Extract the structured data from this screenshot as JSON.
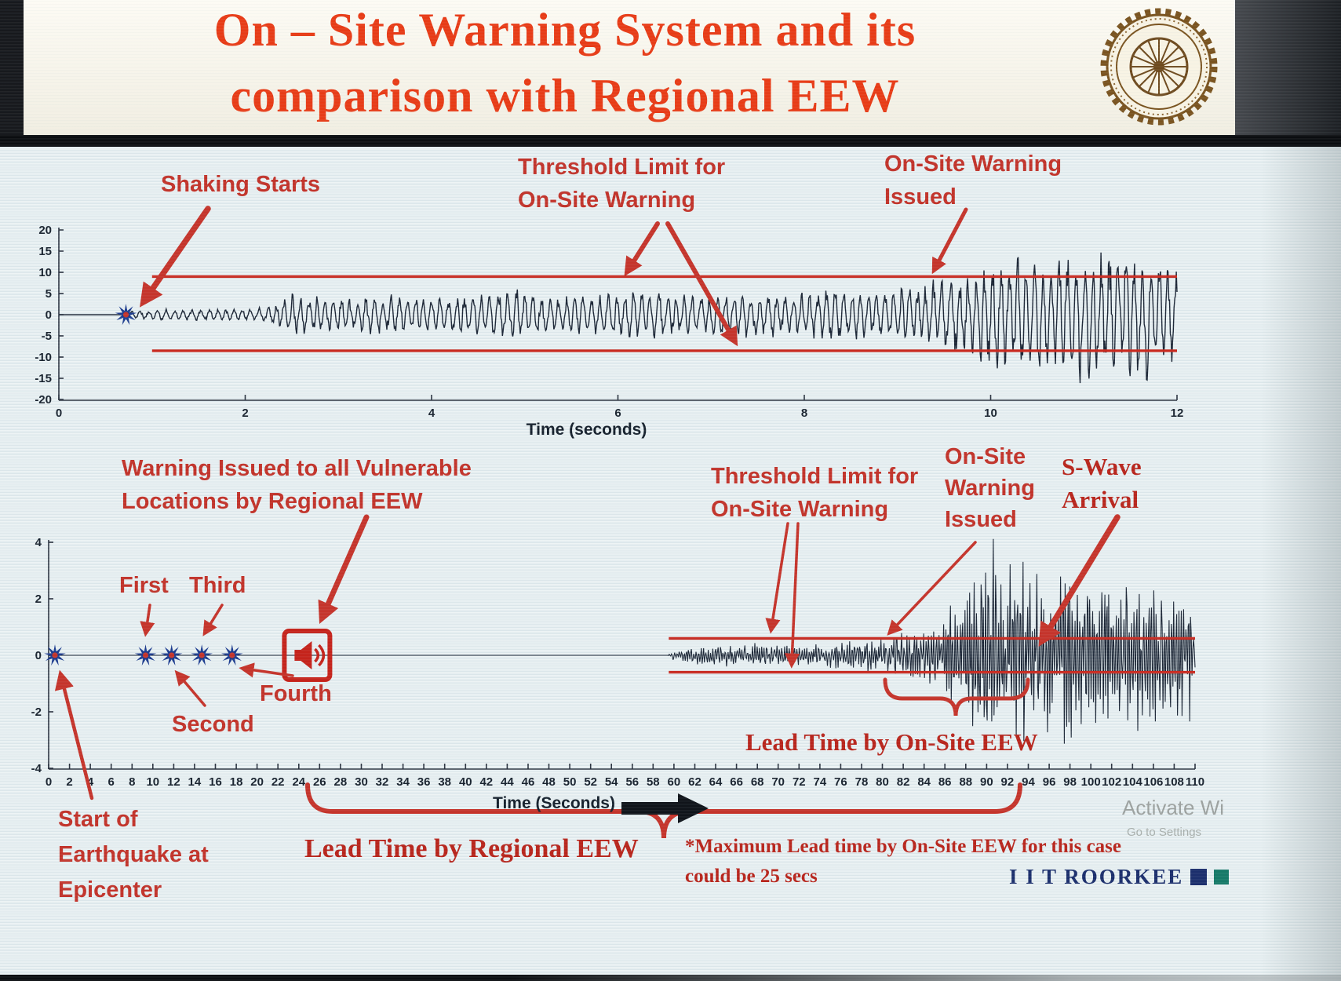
{
  "header": {
    "title_line1": "On – Site Warning System and its",
    "title_line2": "comparison with Regional EEW",
    "logo": "iit-roorkee-seal"
  },
  "colors": {
    "title_red": "#e83b16",
    "annotation_red": "#c2332a",
    "threshold_red": "#c82a20",
    "waveform": "#1c2636",
    "star_blue": "#1d3c8f",
    "brand_navy": "#1c2f6d",
    "brand_teal": "#167a68"
  },
  "icons": {
    "logo": "iit-roorkee-seal",
    "time_axis_arrow": "right-arrow",
    "event_marker": "starburst",
    "regional_warning_marker": "loudspeaker-in-box"
  },
  "chart_data": [
    {
      "type": "line",
      "subtype": "seismogram",
      "name": "onsite-accelerogram",
      "xlabel": "Time (seconds)",
      "xlim": [
        0,
        12
      ],
      "ylim": [
        -20,
        20
      ],
      "xticks": [
        0,
        2,
        4,
        6,
        8,
        10,
        12
      ],
      "yticks": [
        20,
        15,
        10,
        5,
        0,
        -5,
        -10,
        -15,
        -20
      ],
      "grid": false,
      "threshold": {
        "upper": 9,
        "lower": -8.5,
        "start_x": 1.0
      },
      "event_markers": [
        {
          "type": "star",
          "t": 0.72,
          "label": "Shaking Starts"
        }
      ],
      "envelope": [
        [
          0,
          0
        ],
        [
          0.7,
          0
        ],
        [
          0.78,
          0.9
        ],
        [
          1.05,
          1.2
        ],
        [
          2.1,
          1.3
        ],
        [
          2.35,
          2.2
        ],
        [
          2.5,
          4.9
        ],
        [
          2.75,
          4.2
        ],
        [
          3.1,
          3.4
        ],
        [
          3.5,
          4.3
        ],
        [
          4.0,
          3.6
        ],
        [
          4.4,
          4.4
        ],
        [
          4.9,
          5.6
        ],
        [
          5.3,
          4.0
        ],
        [
          5.8,
          4.6
        ],
        [
          6.3,
          5.2
        ],
        [
          6.8,
          4.3
        ],
        [
          7.3,
          5.0
        ],
        [
          7.8,
          4.4
        ],
        [
          8.3,
          5.4
        ],
        [
          8.8,
          5.0
        ],
        [
          9.2,
          6.2
        ],
        [
          9.55,
          8.0
        ],
        [
          9.9,
          11
        ],
        [
          10.25,
          13.5
        ],
        [
          10.6,
          11.5
        ],
        [
          10.9,
          16
        ],
        [
          11.2,
          12.5
        ],
        [
          11.5,
          15
        ],
        [
          11.75,
          13
        ],
        [
          12,
          12.5
        ]
      ],
      "annotation_labels": [
        "Shaking Starts",
        "Threshold Limit for On-Site Warning",
        "On-Site Warning Issued"
      ]
    },
    {
      "type": "line",
      "subtype": "seismogram",
      "name": "regional-vs-onsite-timeline",
      "xlabel": "Time (Seconds)",
      "xlim": [
        0,
        110
      ],
      "ylim": [
        -4,
        4
      ],
      "xtick_step": 2,
      "yticks": [
        4,
        2,
        0,
        -2,
        -4
      ],
      "grid": false,
      "threshold": {
        "upper": 0.6,
        "lower": -0.6,
        "start_x": 59.5
      },
      "event_markers": [
        {
          "type": "star",
          "t": 0.6,
          "label": "Start of Earthquake at Epicenter"
        },
        {
          "type": "star",
          "t": 9.3,
          "label": "First"
        },
        {
          "type": "star",
          "t": 11.8,
          "label": "Second"
        },
        {
          "type": "star",
          "t": 14.7,
          "label": "Third"
        },
        {
          "type": "star",
          "t": 17.6,
          "label": "Fourth"
        },
        {
          "type": "warning-box",
          "t": 24.8,
          "label": "Warning Issued to all Vulnerable Locations by Regional EEW"
        }
      ],
      "envelope": [
        [
          0,
          0
        ],
        [
          59.4,
          0
        ],
        [
          60,
          0.16
        ],
        [
          62,
          0.26
        ],
        [
          66,
          0.3
        ],
        [
          70,
          0.34
        ],
        [
          74,
          0.3
        ],
        [
          77,
          0.42
        ],
        [
          80,
          0.55
        ],
        [
          83,
          0.75
        ],
        [
          85.5,
          1.0
        ],
        [
          87.5,
          1.7
        ],
        [
          89,
          2.6
        ],
        [
          90.5,
          3.1
        ],
        [
          92,
          2.2
        ],
        [
          93.5,
          3.0
        ],
        [
          95,
          2.5
        ],
        [
          96.5,
          2.1
        ],
        [
          98,
          2.8
        ],
        [
          99.5,
          2.2
        ],
        [
          101,
          2.6
        ],
        [
          103,
          2.0
        ],
        [
          105,
          2.4
        ],
        [
          107,
          1.9
        ],
        [
          109,
          2.0
        ],
        [
          110,
          1.7
        ]
      ],
      "annotation_labels": [
        "Threshold Limit for On-Site Warning",
        "On-Site Warning Issued",
        "S-Wave Arrival",
        "Lead Time by On-Site EEW",
        "Lead Time by Regional EEW"
      ]
    }
  ],
  "annotations": {
    "shaking_starts": "Shaking Starts",
    "threshold_top_line1": "Threshold Limit for",
    "threshold_top_line2": "On-Site Warning",
    "onsite_top_line1": "On-Site Warning",
    "onsite_top_line2": "Issued",
    "warning_regional_line1": "Warning Issued to all Vulnerable",
    "warning_regional_line2": "Locations by Regional EEW",
    "first": "First",
    "second": "Second",
    "third": "Third",
    "fourth": "Fourth",
    "start_epicenter_line1": "Start of",
    "start_epicenter_line2": "Earthquake at",
    "start_epicenter_line3": "Epicenter",
    "threshold_bottom_line1": "Threshold Limit for",
    "threshold_bottom_line2": "On-Site Warning",
    "onsite_bottom_line1": "On-Site",
    "onsite_bottom_line2": "Warning",
    "onsite_bottom_line3": "Issued",
    "swave_line1": "S-Wave",
    "swave_line2": "Arrival",
    "lead_time_onsite": "Lead Time by On-Site EEW",
    "lead_time_regional": "Lead Time by Regional EEW",
    "max_lead_line1": "*Maximum Lead time by On-Site EEW for this case",
    "max_lead_line2": "could be 25 secs"
  },
  "footer": {
    "brand": "I I T ROORKEE",
    "watermark_line1": "Activate Wi",
    "watermark_line2": "Go to Settings"
  }
}
